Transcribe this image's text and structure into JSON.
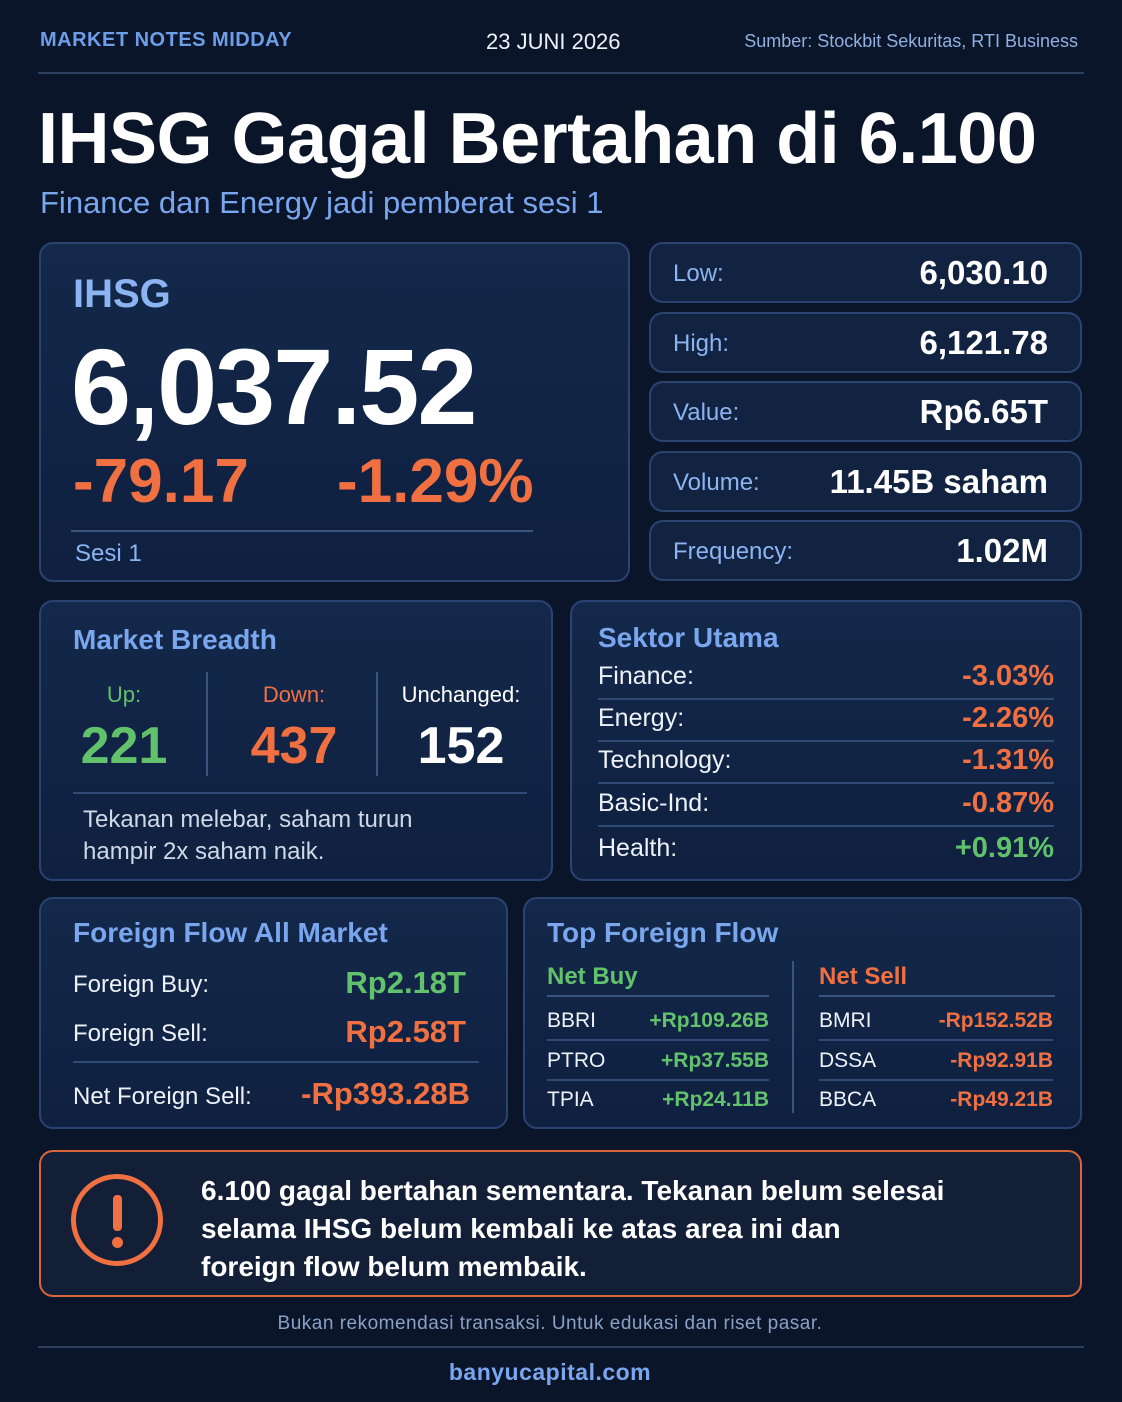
{
  "header": {
    "label": "MARKET NOTES MIDDAY",
    "date": "23 JUNI 2026",
    "source": "Sumber: Stockbit Sekuritas, RTI Business"
  },
  "title": "IHSG Gagal Bertahan di 6.100",
  "subtitle": "Finance dan Energy jadi pemberat sesi 1",
  "ihsg": {
    "label": "IHSG",
    "value": "6,037.52",
    "change": "-79.17",
    "change_pct": "-1.29%",
    "session": "Sesi 1"
  },
  "stats": [
    {
      "label": "Low:",
      "value": "6,030.10"
    },
    {
      "label": "High:",
      "value": "6,121.78"
    },
    {
      "label": "Value:",
      "value": "Rp6.65T"
    },
    {
      "label": "Volume:",
      "value": "11.45B saham"
    },
    {
      "label": "Frequency:",
      "value": "1.02M"
    }
  ],
  "breadth": {
    "title": "Market Breadth",
    "up_label": "Up:",
    "up": "221",
    "down_label": "Down:",
    "down": "437",
    "unch_label": "Unchanged:",
    "unch": "152",
    "note_line1": "Tekanan melebar, saham turun",
    "note_line2": "hampir 2x saham naik."
  },
  "sectors": {
    "title": "Sektor Utama",
    "items": [
      {
        "label": "Finance:",
        "value": "-3.03%"
      },
      {
        "label": "Energy:",
        "value": "-2.26%"
      },
      {
        "label": "Technology:",
        "value": "-1.31%"
      },
      {
        "label": "Basic-Ind:",
        "value": "-0.87%"
      },
      {
        "label": "Health:",
        "value": "+0.91%"
      }
    ]
  },
  "foreign_flow": {
    "title": "Foreign Flow All Market",
    "buy_label": "Foreign Buy:",
    "buy": "Rp2.18T",
    "sell_label": "Foreign Sell:",
    "sell": "Rp2.58T",
    "net_label": "Net Foreign Sell:",
    "net": "-Rp393.28B"
  },
  "top_foreign": {
    "title": "Top Foreign Flow",
    "buy_head": "Net Buy",
    "sell_head": "Net Sell",
    "buys": [
      {
        "code": "BBRI",
        "amount": "+Rp109.26B"
      },
      {
        "code": "PTRO",
        "amount": "+Rp37.55B"
      },
      {
        "code": "TPIA",
        "amount": "+Rp24.11B"
      }
    ],
    "sells": [
      {
        "code": "BMRI",
        "amount": "-Rp152.52B"
      },
      {
        "code": "DSSA",
        "amount": "-Rp92.91B"
      },
      {
        "code": "BBCA",
        "amount": "-Rp49.21B"
      }
    ]
  },
  "alert": {
    "line1": "6.100 gagal bertahan sementara. Tekanan belum selesai",
    "line2": "selama IHSG belum kembali ke atas area ini dan",
    "line3": "foreign flow belum membaik."
  },
  "footer": {
    "disclaimer": "Bukan rekomendasi transaksi. Untuk edukasi dan riset pasar.",
    "site": "banyucapital.com"
  }
}
